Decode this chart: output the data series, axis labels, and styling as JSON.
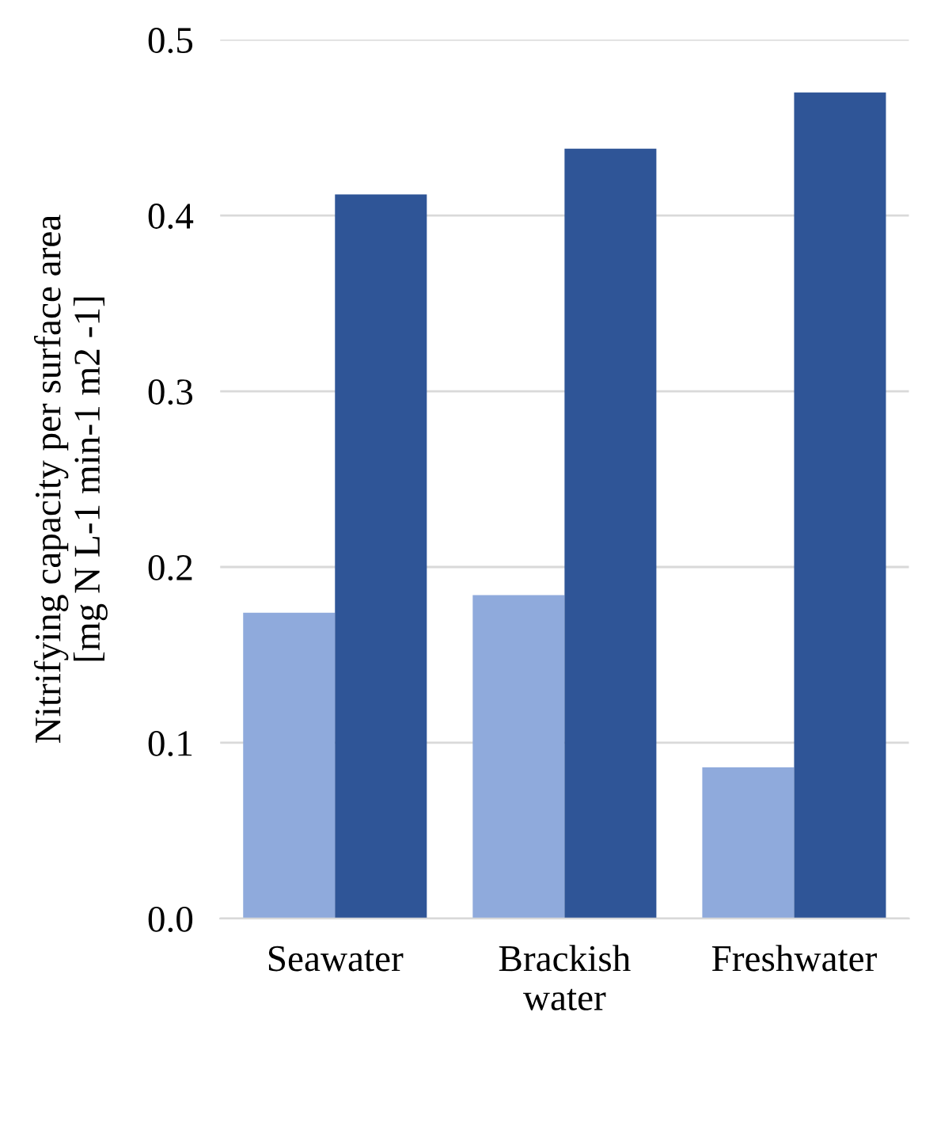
{
  "chart_data": {
    "type": "bar",
    "ylabel": "Nitrifying capacity per surface area\n[mg N L-1 min-1 m2 -1]",
    "categories": [
      "Seawater",
      "Brackish\nwater",
      "Freshwater"
    ],
    "series": [
      {
        "color": "#8faadc",
        "values": [
          0.174,
          0.184,
          0.086
        ]
      },
      {
        "color": "#2f5597",
        "values": [
          0.412,
          0.438,
          0.47
        ]
      }
    ],
    "ylim": [
      0,
      0.5
    ],
    "yticks": [
      {
        "value": 0,
        "label": "0.0"
      },
      {
        "value": 0.1,
        "label": "0.1"
      },
      {
        "value": 0.2,
        "label": "0.2"
      },
      {
        "value": 0.3,
        "label": "0.3"
      },
      {
        "value": 0.4,
        "label": "0.4"
      },
      {
        "value": 0.5,
        "label": "0.5"
      }
    ],
    "grid": "y"
  }
}
